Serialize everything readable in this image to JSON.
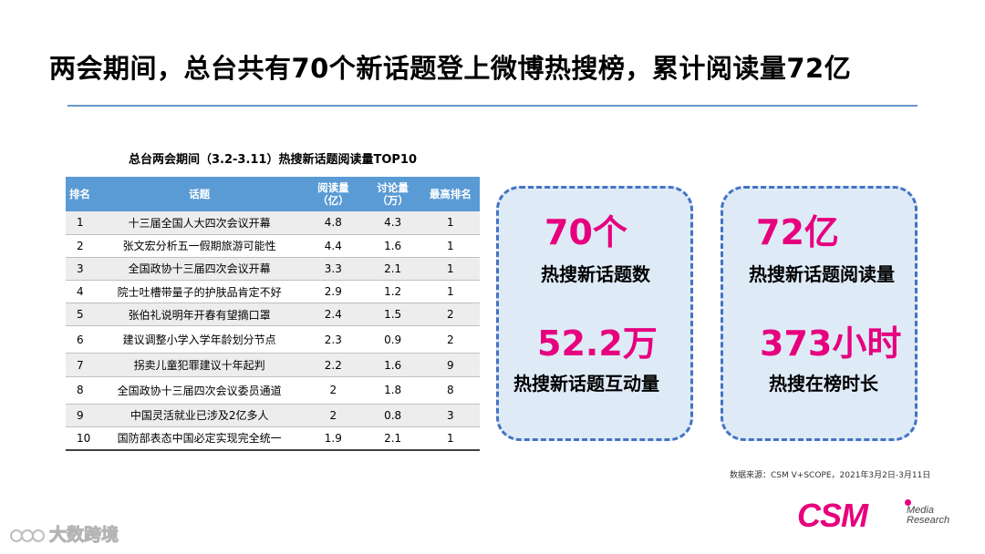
{
  "slide": {
    "title": "两会期间，总台共有70个新话题登上微博热搜榜，累计阅读量72亿"
  },
  "table": {
    "caption": "总台两会期间（3.2-3.11）热搜新话题阅读量TOP10",
    "headers": {
      "rank": "排名",
      "topic": "话题",
      "reads": "阅读量（亿）",
      "discussions": "讨论量（万）",
      "top_rank": "最高排名"
    },
    "header_lines": {
      "reads": [
        "阅读量",
        "（亿）"
      ],
      "discussions": [
        "讨论量",
        "（万）"
      ]
    },
    "rows": [
      {
        "rank": "1",
        "topic": "十三届全国人大四次会议开幕",
        "reads": "4.8",
        "discussions": "4.3",
        "top_rank": "1"
      },
      {
        "rank": "2",
        "topic": "张文宏分析五一假期旅游可能性",
        "reads": "4.4",
        "discussions": "1.6",
        "top_rank": "1"
      },
      {
        "rank": "3",
        "topic": "全国政协十三届四次会议开幕",
        "reads": "3.3",
        "discussions": "2.1",
        "top_rank": "1"
      },
      {
        "rank": "4",
        "topic": "院士吐槽带量子的护肤品肯定不好",
        "reads": "2.9",
        "discussions": "1.2",
        "top_rank": "1"
      },
      {
        "rank": "5",
        "topic": "张伯礼说明年开春有望摘口罩",
        "reads": "2.4",
        "discussions": "1.5",
        "top_rank": "2"
      },
      {
        "rank": "6",
        "topic": "建议调整小学入学年龄划分节点",
        "reads": "2.3",
        "discussions": "0.9",
        "top_rank": "2"
      },
      {
        "rank": "7",
        "topic": "拐卖儿童犯罪建议十年起判",
        "reads": "2.2",
        "discussions": "1.6",
        "top_rank": "9"
      },
      {
        "rank": "8",
        "topic": "全国政协十三届四次会议委员通道",
        "reads": "2",
        "discussions": "1.8",
        "top_rank": "8"
      },
      {
        "rank": "9",
        "topic": "中国灵活就业已涉及2亿多人",
        "reads": "2",
        "discussions": "0.8",
        "top_rank": "3"
      },
      {
        "rank": "10",
        "topic": "国防部表态中国必定实现完全统一",
        "reads": "1.9",
        "discussions": "2.1",
        "top_rank": "1"
      }
    ]
  },
  "stats": {
    "new_topics_count": {
      "value": "70个",
      "label": "热搜新话题数"
    },
    "total_reads": {
      "value": "72亿",
      "label": "热搜新话题阅读量"
    },
    "interactions": {
      "value": "52.2万",
      "label": "热搜新话题互动量"
    },
    "hours_on_list": {
      "value": "373小时",
      "label": "热搜在榜时长"
    }
  },
  "source_note": "数据来源：CSM V+SCOPE，2021年3月2日-3月11日",
  "logo": {
    "mark": "CSM",
    "line1": "Media",
    "line2": "Research"
  },
  "watermark": {
    "text": "大数跨境"
  },
  "colors": {
    "accent_magenta": "#e6007e",
    "table_header_blue": "#5b9bd5",
    "box_fill": "#deebf7",
    "box_border": "#4472c4",
    "title_rule": "#6a96c8"
  }
}
